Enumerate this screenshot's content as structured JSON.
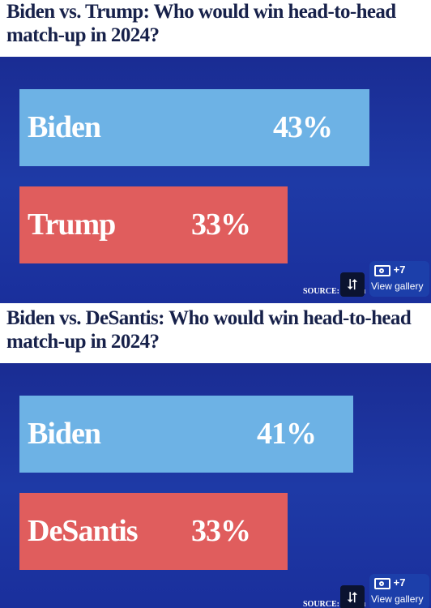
{
  "chart_data": [
    {
      "type": "bar",
      "orientation": "horizontal",
      "title": "Biden vs. Trump: Who would win head-to-head match-up in 2024?",
      "categories": [
        "Biden",
        "Trump"
      ],
      "values": [
        43,
        33
      ],
      "value_labels": [
        "43%",
        "33%"
      ],
      "colors": [
        "#6db2e5",
        "#e05d5d"
      ],
      "xlim": [
        0,
        48
      ],
      "source": "SOURCE: Marqu"
    },
    {
      "type": "bar",
      "orientation": "horizontal",
      "title": "Biden vs. DeSantis: Who would win head-to-head match-up in 2024?",
      "categories": [
        "Biden",
        "DeSantis"
      ],
      "values": [
        41,
        33
      ],
      "value_labels": [
        "41%",
        "33%"
      ],
      "colors": [
        "#6db2e5",
        "#e05d5d"
      ],
      "xlim": [
        0,
        48
      ],
      "source": "SOURCE: Marqu"
    }
  ],
  "gallery": {
    "count": "+7",
    "label": "View gallery",
    "icon": "camera-icon"
  },
  "share": {
    "icon": "share-icon"
  },
  "background_color": "#1e3aa6",
  "title_color": "#17214a"
}
